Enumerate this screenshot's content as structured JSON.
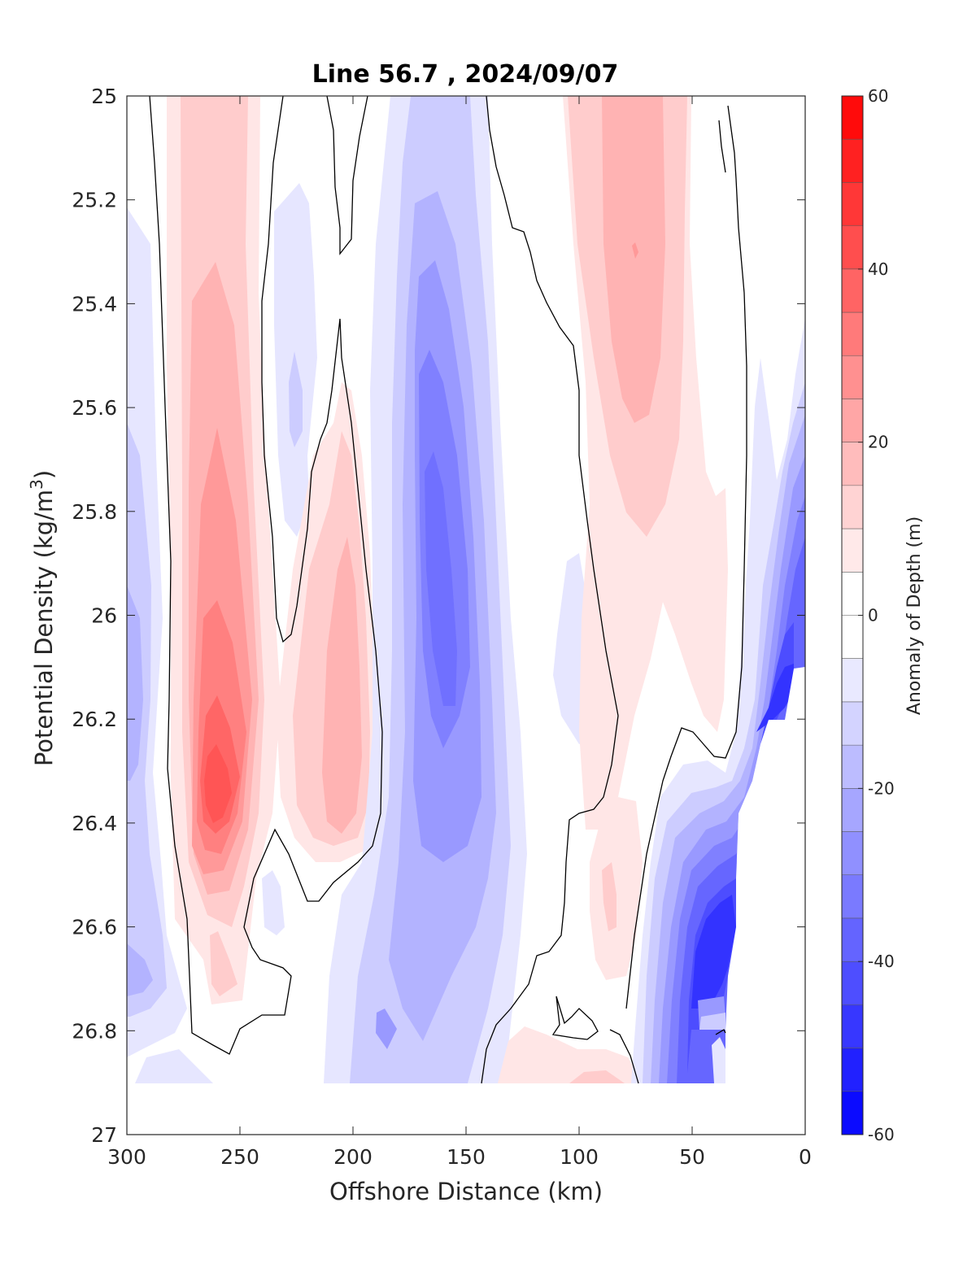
{
  "chart_data": {
    "type": "contourf",
    "title": "Line 56.7 , 2024/09/07",
    "xlabel": "Offshore Distance (km)",
    "ylabel_main": "Potential Density (kg/m",
    "ylabel_sup": "3",
    "ylabel_close": ")",
    "colorbar_label": "Anomaly of Depth (m)",
    "xlim": [
      300,
      0
    ],
    "ylim": [
      25,
      27
    ],
    "x_direction": "reversed",
    "y_direction": "reversed",
    "xticks": [
      300,
      250,
      200,
      150,
      100,
      50,
      0
    ],
    "xtick_labels": [
      "300",
      "250",
      "200",
      "150",
      "100",
      "50",
      "0"
    ],
    "yticks": [
      25,
      25.2,
      25.4,
      25.6,
      25.8,
      26,
      26.2,
      26.4,
      26.6,
      26.8,
      27
    ],
    "ytick_labels": [
      "25",
      "25.2",
      "25.4",
      "25.6",
      "25.8",
      "26",
      "26.2",
      "26.4",
      "26.6",
      "26.8",
      "27"
    ],
    "clim": [
      -60,
      60
    ],
    "contour_interval": 5,
    "colorbar_ticks": [
      60,
      40,
      20,
      0,
      -20,
      -40,
      -60
    ],
    "colorbar_tick_labels": [
      "60",
      "40",
      "20",
      "0",
      "-20",
      "-40",
      "-60"
    ],
    "colormap": "blue-white-red",
    "colors": {
      "max": "#ff0000",
      "zero": "#ffffff",
      "min": "#0000ff",
      "zero_contour": "#000000"
    },
    "features": [
      {
        "sign": "positive",
        "x": 260,
        "y": 26.32,
        "peak": 33
      },
      {
        "sign": "positive",
        "x": 200,
        "y": 26.1,
        "peak": 13
      },
      {
        "sign": "positive",
        "x": 73,
        "y": 25.3,
        "peak": 22
      },
      {
        "sign": "positive",
        "x": 90,
        "y": 26.6,
        "peak": 11
      },
      {
        "sign": "negative",
        "x": 162,
        "y": 25.95,
        "peak": -28
      },
      {
        "sign": "negative",
        "x": 222,
        "y": 25.6,
        "peak": -12
      },
      {
        "sign": "negative",
        "x": 297,
        "y": 26.15,
        "peak": -18
      },
      {
        "sign": "negative",
        "x": 30,
        "y": 26.65,
        "peak": -45
      },
      {
        "sign": "negative",
        "x": 12,
        "y": 26.15,
        "peak": -50
      }
    ]
  }
}
